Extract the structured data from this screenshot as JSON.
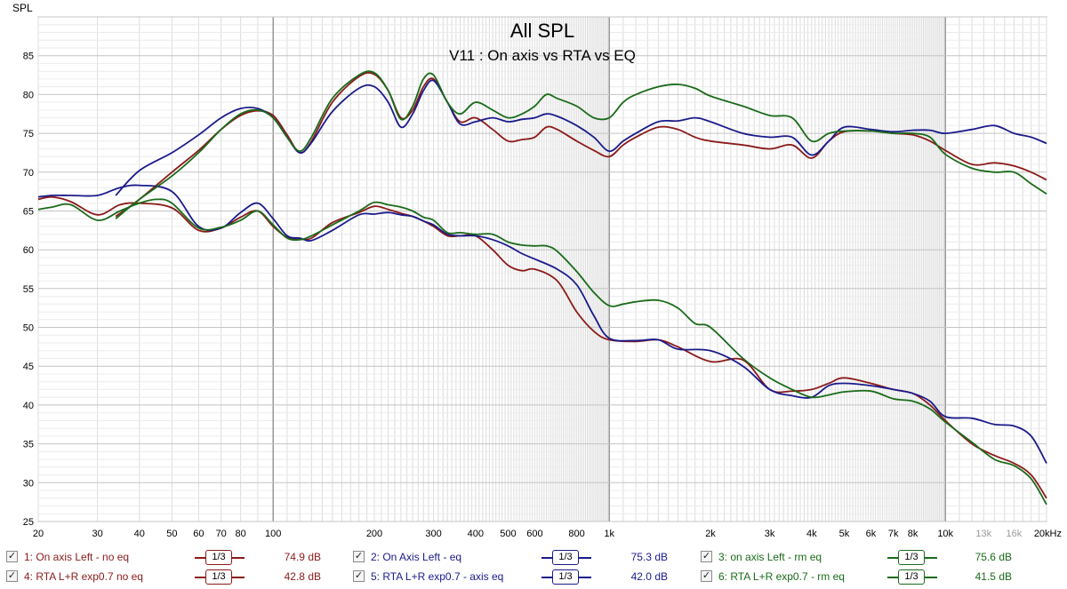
{
  "chart_data": {
    "type": "line",
    "title": "All SPL",
    "subtitle": "V11 : On axis vs RTA vs EQ",
    "ylabel": "SPL",
    "xlabel": "",
    "x_scale": "log",
    "xlim": [
      20,
      20000
    ],
    "ylim": [
      25,
      90
    ],
    "grid": true,
    "y_ticks": [
      25,
      30,
      35,
      40,
      45,
      50,
      55,
      60,
      65,
      70,
      75,
      80,
      85
    ],
    "x_ticks": [
      {
        "v": 20,
        "label": "20"
      },
      {
        "v": 30,
        "label": "30"
      },
      {
        "v": 40,
        "label": "40"
      },
      {
        "v": 50,
        "label": "50"
      },
      {
        "v": 60,
        "label": "60"
      },
      {
        "v": 70,
        "label": "70"
      },
      {
        "v": 80,
        "label": "80"
      },
      {
        "v": 100,
        "label": "100"
      },
      {
        "v": 200,
        "label": "200"
      },
      {
        "v": 300,
        "label": "300"
      },
      {
        "v": 400,
        "label": "400"
      },
      {
        "v": 500,
        "label": "500"
      },
      {
        "v": 600,
        "label": "600"
      },
      {
        "v": 800,
        "label": "800"
      },
      {
        "v": 1000,
        "label": "1k"
      },
      {
        "v": 2000,
        "label": "2k"
      },
      {
        "v": 3000,
        "label": "3k"
      },
      {
        "v": 4000,
        "label": "4k"
      },
      {
        "v": 5000,
        "label": "5k"
      },
      {
        "v": 6000,
        "label": "6k"
      },
      {
        "v": 7000,
        "label": "7k"
      },
      {
        "v": 8000,
        "label": "8k"
      },
      {
        "v": 10000,
        "label": "10k"
      },
      {
        "v": 13000,
        "label": "13k"
      },
      {
        "v": 16000,
        "label": "16k"
      },
      {
        "v": 20000,
        "label": "20kHz"
      }
    ],
    "series": [
      {
        "name": "1: On axis Left - no eq",
        "color": "#8b1a1a",
        "smoothing": "1/3",
        "value": "74.9 dB",
        "x": [
          20,
          22,
          25,
          30,
          35,
          40,
          50,
          60,
          70,
          80,
          90,
          100,
          110,
          120,
          130,
          150,
          180,
          200,
          220,
          240,
          260,
          280,
          300,
          330,
          360,
          400,
          450,
          500,
          550,
          600,
          700,
          800,
          900,
          1000,
          1200,
          1400,
          1600,
          2000,
          2500,
          3000,
          3500,
          4000,
          4500,
          5000,
          6000,
          7000,
          8000,
          9000,
          10000,
          12000,
          14000,
          16000,
          18000,
          20000
        ],
        "y": [
          66.5,
          66.8,
          66.2,
          64.5,
          65.8,
          66.0,
          65.4,
          62.5,
          62.8,
          64.2,
          65.0,
          63.0,
          61.6,
          61.4,
          61.5,
          63.5,
          64.8,
          65.6,
          65.2,
          64.7,
          64.3,
          63.7,
          63.0,
          61.8,
          61.8,
          61.8,
          60.0,
          58.0,
          57.3,
          57.5,
          56.0,
          52.0,
          49.5,
          48.4,
          48.2,
          48.4,
          47.5,
          45.6,
          45.8,
          42.0,
          41.8,
          42.0,
          42.8,
          43.5,
          42.8,
          42.0,
          41.5,
          40.0,
          38.0,
          35.0,
          33.5,
          32.5,
          31.0,
          28.0
        ]
      },
      {
        "name": "2: On Axis Left - eq",
        "color": "#1a1a8b",
        "smoothing": "1/3",
        "value": "75.3 dB",
        "x": [
          34,
          40,
          50,
          60,
          70,
          80,
          90,
          100,
          110,
          120,
          130,
          150,
          180,
          200,
          220,
          240,
          260,
          280,
          300,
          330,
          360,
          400,
          450,
          500,
          550,
          600,
          650,
          700,
          800,
          900,
          1000,
          1100,
          1200,
          1400,
          1600,
          1800,
          2000,
          2500,
          3000,
          3500,
          4000,
          4500,
          5000,
          6000,
          7000,
          8000,
          9000,
          10000,
          12000,
          14000,
          16000,
          18000,
          20000
        ],
        "y": [
          67.0,
          70.2,
          72.5,
          74.8,
          77.0,
          78.2,
          78.2,
          77.0,
          74.5,
          72.5,
          73.8,
          77.8,
          80.8,
          81.0,
          79.0,
          75.8,
          77.5,
          80.5,
          81.8,
          79.0,
          76.2,
          76.5,
          77.0,
          76.5,
          76.8,
          77.0,
          77.5,
          77.2,
          76.0,
          74.5,
          72.7,
          74.0,
          75.0,
          76.5,
          76.6,
          77.0,
          76.5,
          75.0,
          74.5,
          74.5,
          72.2,
          74.0,
          75.8,
          75.5,
          75.2,
          75.4,
          75.4,
          75.0,
          75.5,
          76.0,
          75.0,
          74.5,
          73.7
        ]
      },
      {
        "name": "3: on axis Left - rm eq",
        "color": "#1a6b1a",
        "smoothing": "1/3",
        "value": "75.6 dB",
        "x": [
          34,
          40,
          50,
          60,
          70,
          80,
          90,
          100,
          110,
          120,
          130,
          150,
          180,
          200,
          220,
          240,
          260,
          280,
          300,
          330,
          360,
          400,
          450,
          500,
          550,
          600,
          650,
          700,
          800,
          900,
          1000,
          1100,
          1200,
          1400,
          1600,
          1800,
          2000,
          2500,
          3000,
          3500,
          4000,
          4500,
          5000,
          6000,
          7000,
          8000,
          9000,
          10000,
          12000,
          14000,
          16000,
          18000,
          20000
        ],
        "y": [
          64.0,
          66.5,
          69.5,
          72.5,
          75.5,
          77.5,
          78.0,
          77.0,
          74.5,
          72.7,
          74.5,
          79.5,
          82.5,
          82.8,
          80.5,
          76.8,
          78.5,
          82.0,
          82.5,
          79.0,
          77.5,
          79.0,
          78.0,
          77.0,
          77.5,
          78.5,
          80.0,
          79.5,
          78.5,
          77.0,
          77.0,
          79.0,
          80.0,
          81.0,
          81.3,
          80.8,
          79.8,
          78.5,
          77.3,
          77.0,
          74.0,
          75.0,
          75.3,
          75.3,
          75.0,
          75.0,
          74.5,
          72.3,
          70.5,
          70.0,
          70.0,
          68.5,
          67.2
        ]
      },
      {
        "name": "4: RTA L+R exp0.7 no eq",
        "color": "#8b1a1a",
        "smoothing": "1/3",
        "value": "42.8 dB",
        "x": [
          34,
          40,
          50,
          60,
          70,
          80,
          90,
          100,
          110,
          120,
          130,
          150,
          180,
          200,
          220,
          240,
          260,
          280,
          300,
          330,
          360,
          400,
          450,
          500,
          550,
          600,
          650,
          700,
          800,
          900,
          1000,
          1100,
          1200,
          1400,
          1600,
          1800,
          2000,
          2500,
          3000,
          3500,
          4000,
          4500,
          5000,
          6000,
          7000,
          8000,
          9000,
          10000,
          12000,
          14000,
          16000,
          18000,
          20000
        ],
        "y": [
          64.3,
          66.5,
          70.0,
          72.8,
          75.5,
          77.3,
          77.9,
          77.3,
          74.8,
          72.5,
          74.0,
          79.0,
          82.3,
          82.6,
          80.5,
          77.0,
          78.0,
          81.0,
          82.0,
          79.0,
          76.5,
          77.0,
          75.5,
          74.0,
          74.2,
          74.5,
          75.8,
          75.5,
          74.0,
          72.8,
          72.0,
          73.5,
          74.5,
          75.8,
          75.5,
          74.5,
          74.0,
          73.5,
          73.0,
          73.5,
          71.8,
          74.0,
          75.2,
          75.3,
          75.0,
          74.8,
          74.0,
          72.8,
          71.0,
          71.2,
          70.8,
          70.0,
          69.0
        ]
      },
      {
        "name": "5: RTA L+R exp0.7 - axis eq",
        "color": "#1a1a8b",
        "smoothing": "1/3",
        "value": "42.0 dB",
        "x": [
          20,
          22,
          25,
          30,
          35,
          40,
          50,
          60,
          70,
          80,
          90,
          100,
          110,
          120,
          130,
          150,
          180,
          200,
          220,
          240,
          260,
          280,
          300,
          330,
          360,
          400,
          450,
          500,
          550,
          600,
          700,
          800,
          900,
          1000,
          1200,
          1400,
          1600,
          2000,
          2500,
          3000,
          3500,
          4000,
          4500,
          5000,
          6000,
          7000,
          8000,
          9000,
          10000,
          12000,
          14000,
          16000,
          18000,
          20000
        ],
        "y": [
          66.8,
          67.0,
          67.0,
          67.0,
          68.0,
          68.3,
          67.5,
          63.0,
          62.8,
          64.8,
          66.0,
          64.0,
          61.8,
          61.5,
          61.2,
          62.5,
          64.5,
          64.6,
          64.8,
          64.5,
          64.3,
          63.7,
          63.2,
          62.0,
          61.8,
          61.8,
          61.3,
          60.5,
          59.5,
          58.8,
          57.5,
          55.5,
          51.5,
          48.6,
          48.3,
          48.4,
          47.2,
          47.0,
          45.0,
          42.0,
          41.2,
          41.0,
          42.5,
          42.8,
          42.5,
          42.0,
          41.5,
          40.5,
          38.5,
          38.3,
          37.5,
          37.3,
          36.0,
          32.5
        ]
      },
      {
        "name": "6: RTA L+R exp0.7 - rm eq",
        "color": "#1a6b1a",
        "smoothing": "1/3",
        "value": "41.5 dB",
        "x": [
          20,
          22,
          25,
          30,
          35,
          40,
          45,
          50,
          60,
          70,
          80,
          90,
          100,
          110,
          120,
          130,
          150,
          180,
          200,
          220,
          240,
          260,
          280,
          300,
          330,
          360,
          400,
          450,
          500,
          550,
          600,
          650,
          700,
          800,
          900,
          1000,
          1100,
          1200,
          1400,
          1600,
          1800,
          2000,
          2500,
          3000,
          3500,
          4000,
          4500,
          5000,
          6000,
          7000,
          8000,
          9000,
          10000,
          12000,
          14000,
          16000,
          18000,
          20000
        ],
        "y": [
          65.2,
          65.5,
          65.8,
          63.8,
          65.0,
          66.0,
          66.5,
          66.0,
          62.8,
          62.9,
          63.8,
          65.0,
          63.2,
          61.5,
          61.3,
          61.8,
          63.2,
          65.0,
          66.1,
          65.8,
          65.5,
          65.0,
          64.2,
          63.8,
          62.2,
          62.2,
          62.0,
          62.0,
          61.0,
          60.6,
          60.5,
          60.5,
          59.8,
          57.2,
          54.5,
          52.8,
          53.0,
          53.3,
          53.5,
          52.5,
          50.5,
          50.0,
          46.0,
          43.5,
          42.0,
          41.0,
          41.3,
          41.7,
          41.8,
          40.8,
          40.5,
          39.5,
          37.8,
          35.2,
          33.0,
          32.2,
          30.5,
          27.2
        ]
      }
    ]
  },
  "legend_check": "✓"
}
